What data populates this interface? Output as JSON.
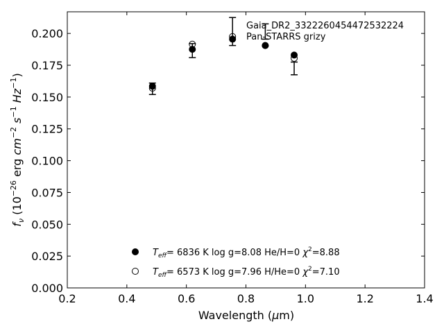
{
  "chart_data": {
    "type": "scatter",
    "title": "",
    "object_label": "Gaia_DR2_3322260454472532224",
    "photometry_label": "Pan-STARRS grizy",
    "xlabel": "Wavelength (μm)",
    "ylabel": "fν (10⁻²⁶ erg cm⁻² s⁻¹ Hz⁻¹)",
    "xlim": [
      0.2,
      1.4
    ],
    "ylim": [
      0.0,
      0.217
    ],
    "xticks": [
      0.2,
      0.4,
      0.6,
      0.8,
      1.0,
      1.2,
      1.4
    ],
    "xtick_labels": [
      "0.2",
      "0.4",
      "0.6",
      "0.8",
      "1.0",
      "1.2",
      "1.4"
    ],
    "yticks": [
      0.0,
      0.025,
      0.05,
      0.075,
      0.1,
      0.125,
      0.15,
      0.175,
      0.2
    ],
    "ytick_labels": [
      "0.000",
      "0.025",
      "0.050",
      "0.075",
      "0.100",
      "0.125",
      "0.150",
      "0.175",
      "0.200"
    ],
    "grid": false,
    "observed": {
      "x": [
        0.486,
        0.62,
        0.755,
        0.865,
        0.962
      ],
      "y": [
        0.1565,
        0.1865,
        0.2015,
        0.2015,
        0.1725
      ],
      "yerr": [
        0.0045,
        0.0055,
        0.011,
        0.006,
        0.005
      ]
    },
    "series": [
      {
        "marker": "filled",
        "model_label": "T_eff=  6836 K  log g=8.08  He/H=0  χ²=8.88",
        "x": [
          0.486,
          0.62,
          0.755,
          0.865,
          0.962
        ],
        "y": [
          0.1585,
          0.1875,
          0.1955,
          0.1905,
          0.183
        ]
      },
      {
        "marker": "open",
        "model_label": "T_eff=  6573 K  log g=7.96  H/He=0  χ²=7.10",
        "x": [
          0.486,
          0.62,
          0.755,
          0.865,
          0.962
        ],
        "y": [
          0.157,
          0.1915,
          0.1975,
          0.1905,
          0.1805
        ]
      }
    ],
    "legend_teff": [
      "6836",
      "6573"
    ],
    "legend_rest": [
      "K  log g=8.08  He/H=0  ",
      "K  log g=7.96  H/He=0  "
    ],
    "legend_chi": [
      "=8.88",
      "=7.10"
    ],
    "legend_placement": "bottom-center",
    "colors": {
      "marker": "#000000",
      "axis": "#000000",
      "background": "#ffffff"
    }
  }
}
